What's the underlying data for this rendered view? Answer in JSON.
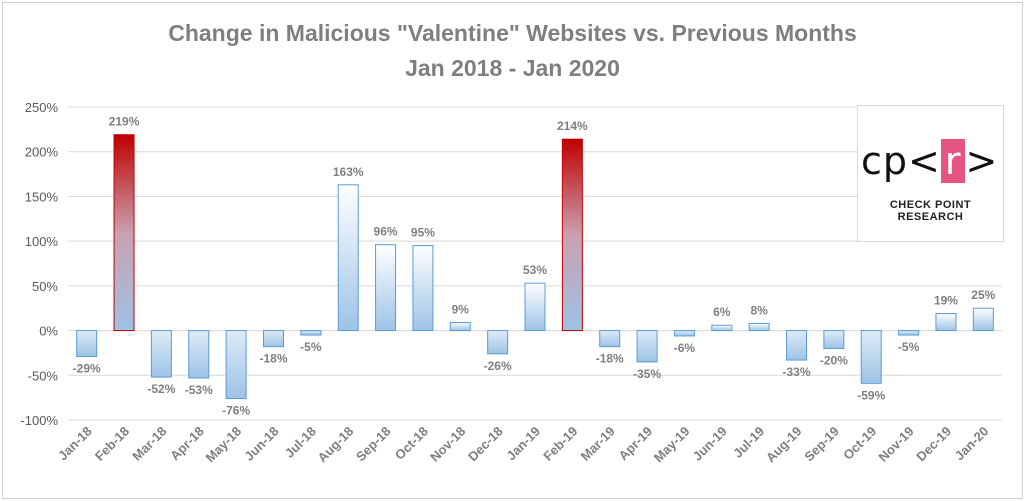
{
  "chart_data": {
    "type": "bar",
    "title": "Change in Malicious \"Valentine\" Websites vs. Previous Months",
    "subtitle": "Jan 2018 - Jan 2020",
    "xlabel": "",
    "ylabel": "",
    "ylim": [
      -100,
      250
    ],
    "yticks": [
      -100,
      -50,
      0,
      50,
      100,
      150,
      200,
      250
    ],
    "ytick_labels": [
      "-100%",
      "-50%",
      "0%",
      "50%",
      "100%",
      "150%",
      "200%",
      "250%"
    ],
    "grid": true,
    "categories": [
      "Jan-18",
      "Feb-18",
      "Mar-18",
      "Apr-18",
      "May-18",
      "Jun-18",
      "Jul-18",
      "Aug-18",
      "Sep-18",
      "Oct-18",
      "Nov-18",
      "Dec-18",
      "Jan-19",
      "Feb-19",
      "Mar-19",
      "Apr-19",
      "May-19",
      "Jun-19",
      "Jul-19",
      "Aug-19",
      "Sep-19",
      "Oct-19",
      "Nov-19",
      "Dec-19",
      "Jan-20"
    ],
    "values": [
      -29,
      219,
      -52,
      -53,
      -76,
      -18,
      -5,
      163,
      96,
      95,
      9,
      -26,
      53,
      214,
      -18,
      -35,
      -6,
      6,
      8,
      -33,
      -20,
      -59,
      -5,
      19,
      25
    ],
    "highlighted": [
      "Feb-18",
      "Feb-19"
    ],
    "colors": {
      "bar": "#9dc3e6",
      "bar_border": "#5b9bd5",
      "highlight": "#c00000"
    }
  },
  "logo": {
    "mark_prefix": "cp<",
    "mark_r": "r",
    "mark_suffix": ">",
    "brand": "CHECK POINT RESEARCH"
  }
}
